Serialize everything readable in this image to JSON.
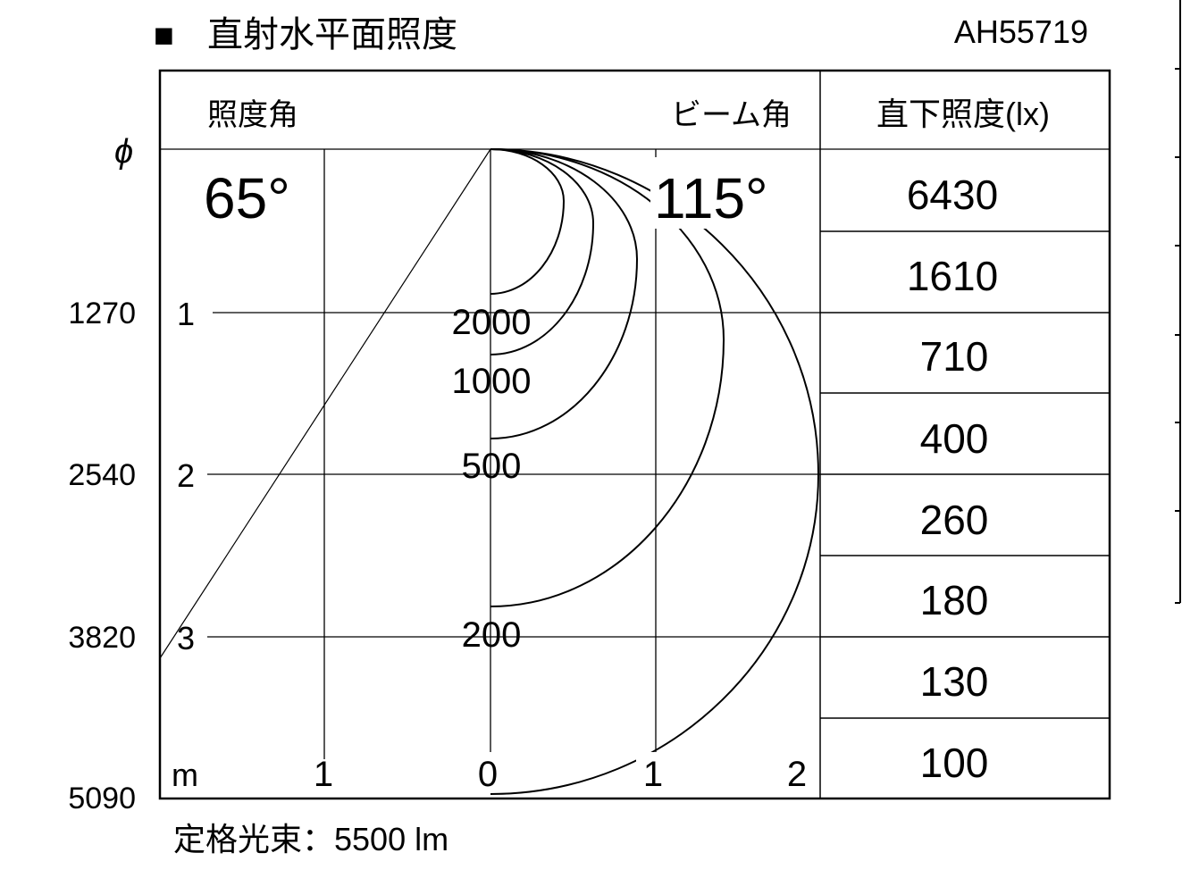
{
  "header": {
    "title_marker": "■",
    "title": "直射水平面照度",
    "model": "AH55719"
  },
  "table_header": {
    "illuminance_angle_label": "照度角",
    "beam_angle_label": "ビーム角",
    "center_lux_label": "直下照度(lx)"
  },
  "angles": {
    "illuminance_angle": "65°",
    "beam_angle": "115°"
  },
  "left_axis": {
    "diameter_symbol": "ϕ",
    "diameters": [
      "1270",
      "2540",
      "3820",
      "5090"
    ],
    "distances": [
      "1",
      "2",
      "3"
    ]
  },
  "bottom_axis": {
    "unit": "m",
    "ticks": [
      "1",
      "0",
      "1",
      "2"
    ]
  },
  "contours": [
    "2000",
    "1000",
    "500",
    "200"
  ],
  "lux_values": [
    "6430",
    "1610",
    "710",
    "400",
    "260",
    "180",
    "130",
    "100"
  ],
  "footer": {
    "rated_flux": "定格光束：5500 lm"
  }
}
